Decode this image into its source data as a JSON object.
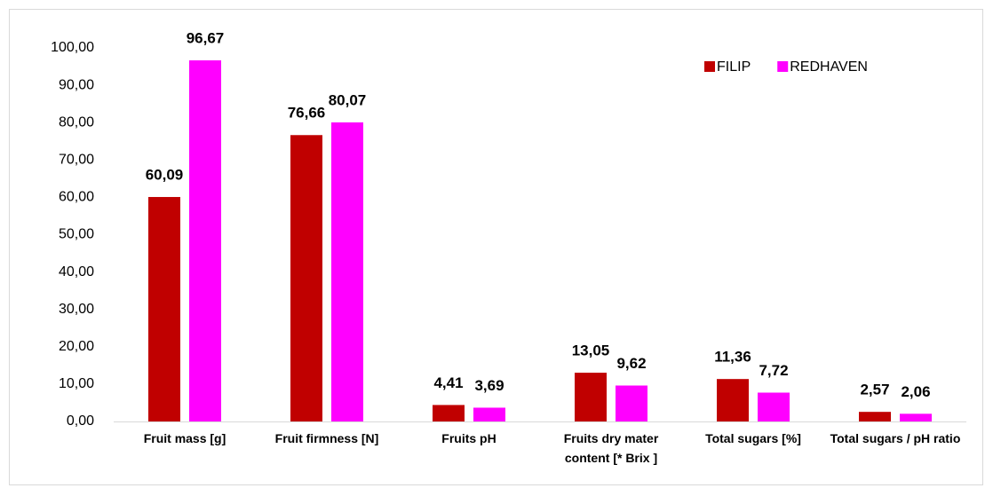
{
  "chart_data": {
    "type": "bar",
    "categories": [
      "Fruit mass [g]",
      "Fruit firmness [N]",
      "Fruits pH",
      "Fruits dry mater content [* Brix ]",
      "Total sugars [%]",
      "Total sugars / pH ratio"
    ],
    "series": [
      {
        "name": "FILIP",
        "color": "#c00000",
        "values": [
          60.09,
          76.66,
          4.41,
          13.05,
          11.36,
          2.57
        ],
        "value_labels": [
          "60,09",
          "76,66",
          "4,41",
          "13,05",
          "11,36",
          "2,57"
        ]
      },
      {
        "name": "REDHAVEN",
        "color": "#ff00ff",
        "values": [
          96.67,
          80.07,
          3.69,
          9.62,
          7.72,
          2.06
        ],
        "value_labels": [
          "96,67",
          "80,07",
          "3,69",
          "9,62",
          "7,72",
          "2,06"
        ]
      }
    ],
    "ylim": [
      0,
      100
    ],
    "yticks": [
      {
        "value": 0,
        "label": "0,00"
      },
      {
        "value": 10,
        "label": "10,00"
      },
      {
        "value": 20,
        "label": "20,00"
      },
      {
        "value": 30,
        "label": "30,00"
      },
      {
        "value": 40,
        "label": "40,00"
      },
      {
        "value": 50,
        "label": "50,00"
      },
      {
        "value": 60,
        "label": "60,00"
      },
      {
        "value": 70,
        "label": "70,00"
      },
      {
        "value": 80,
        "label": "80,00"
      },
      {
        "value": 90,
        "label": "90,00"
      },
      {
        "value": 100,
        "label": "100,00"
      }
    ],
    "grid": false,
    "legend": "top-right"
  }
}
